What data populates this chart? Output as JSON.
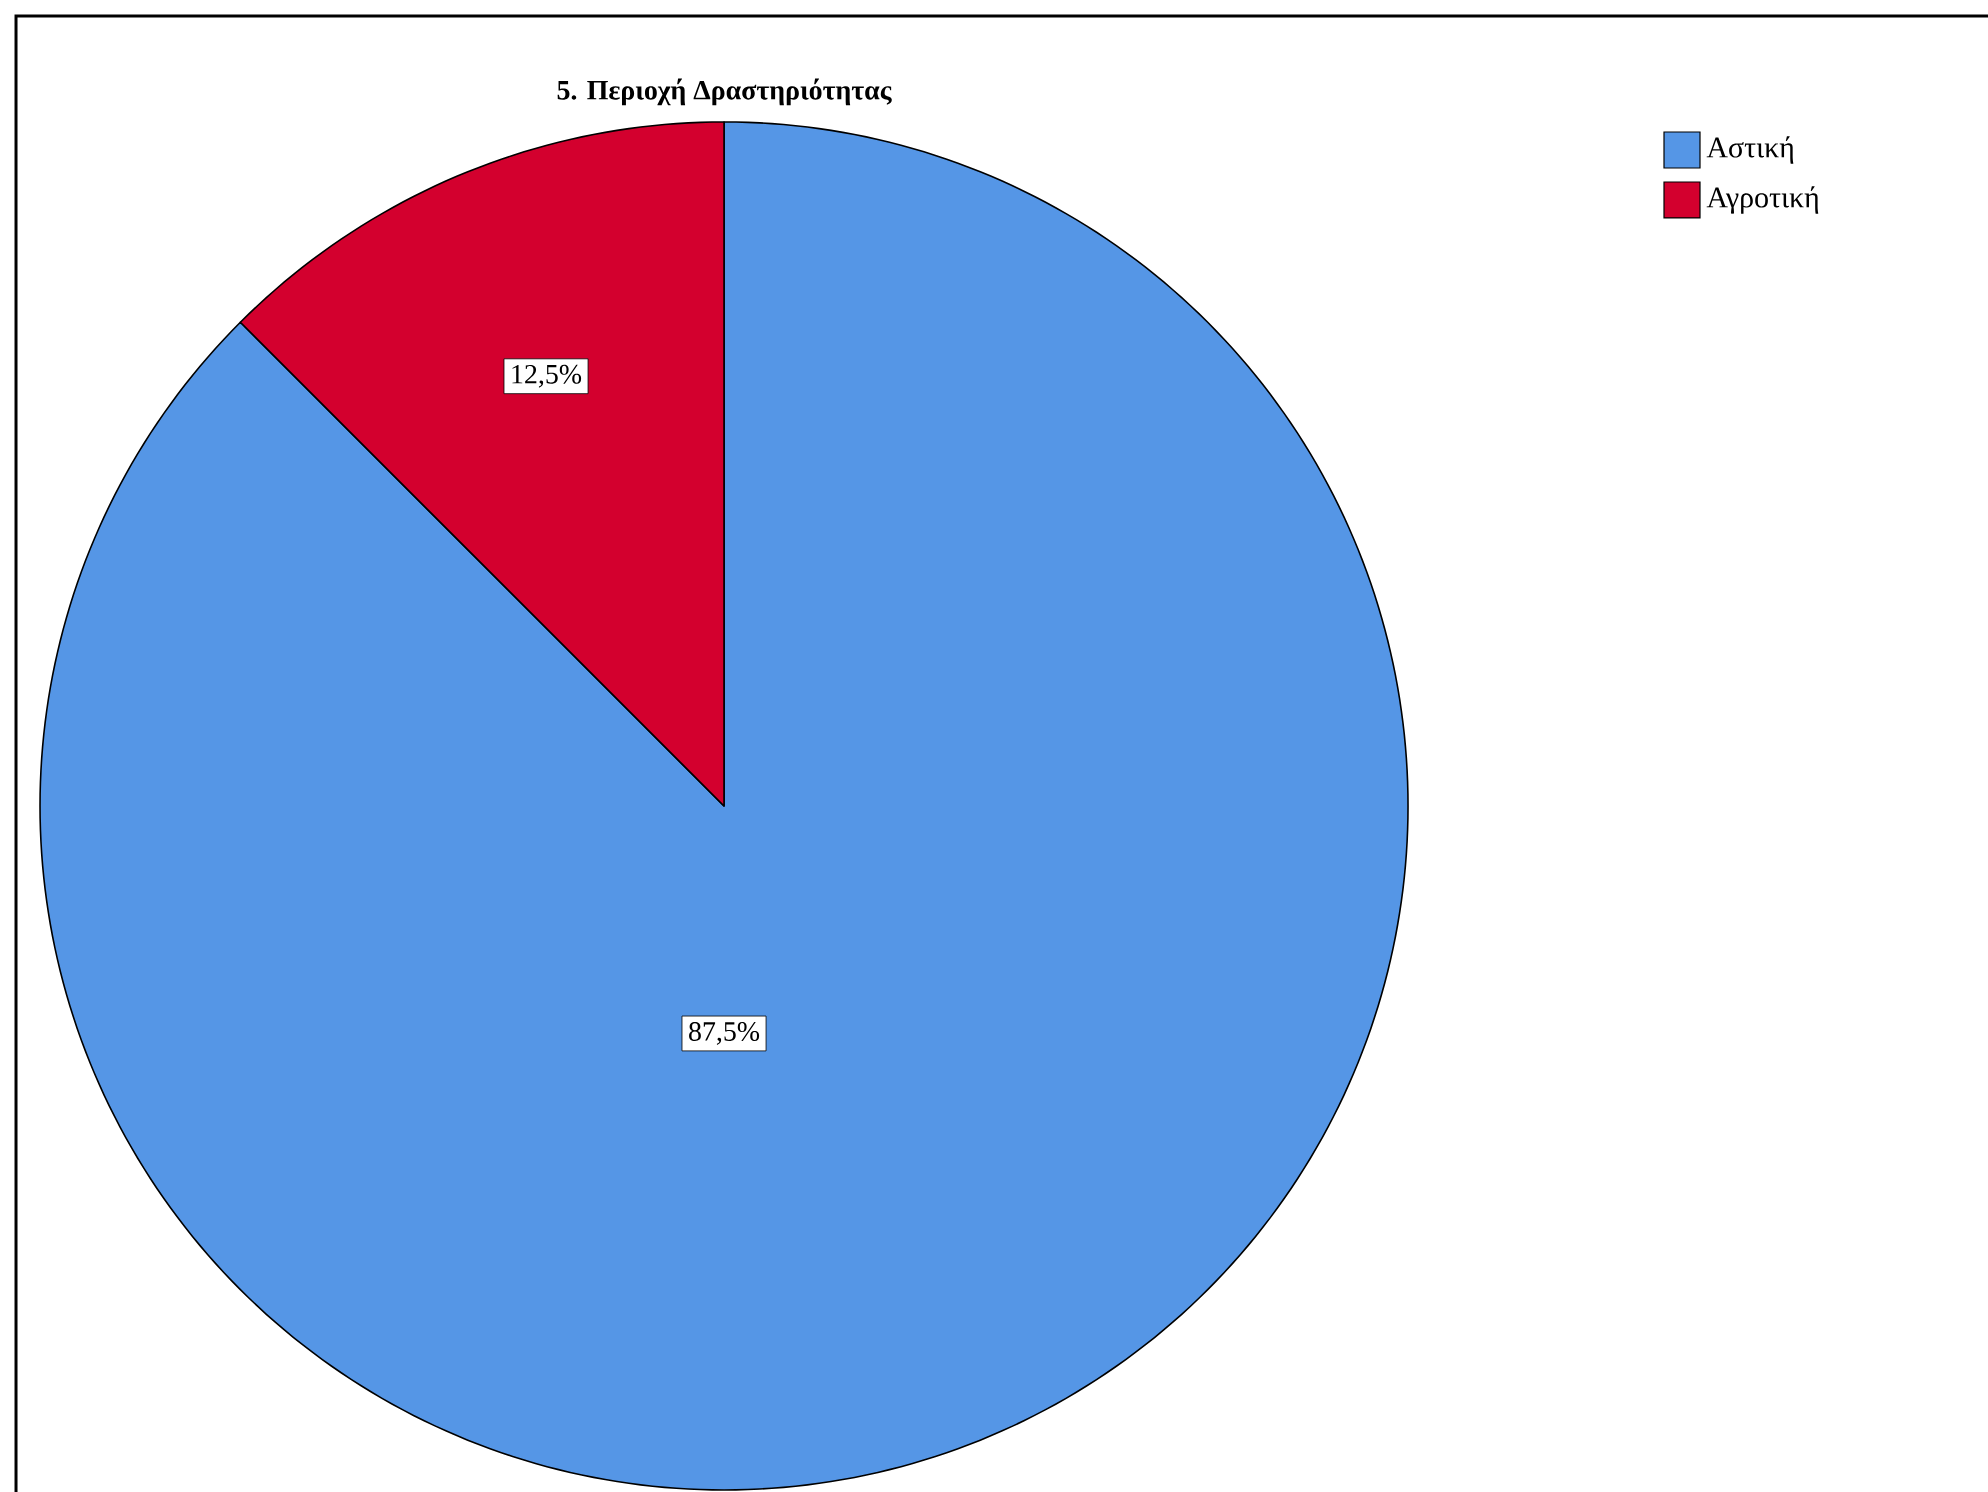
{
  "chart_data": {
    "type": "pie",
    "title": "5. Περιοχή Δραστηριότητας",
    "categories": [
      "Αστική",
      "Αγροτική"
    ],
    "values": [
      87.5,
      12.5
    ],
    "colors": [
      "#5596e6",
      "#d3002e"
    ],
    "value_labels": [
      "87,5%",
      "12,5%"
    ],
    "legend": "top right"
  }
}
